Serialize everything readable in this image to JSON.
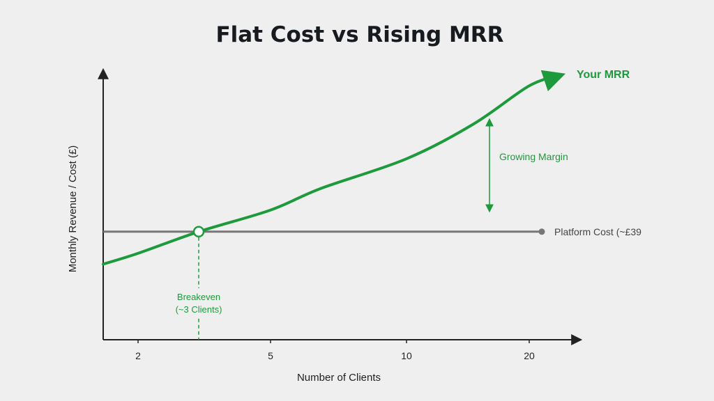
{
  "colors": {
    "background": "#efefef",
    "axis": "#222222",
    "revenue": "#1d9a3b",
    "cost": "#777777",
    "annotation": "#1d9a3b"
  },
  "chart_data": {
    "type": "line",
    "title": "Flat Cost vs Rising MRR",
    "xlabel": "Number of Clients",
    "ylabel": "Monthly Revenue / Cost (£)",
    "x_ticks": [
      2,
      5,
      10,
      20
    ],
    "grid": false,
    "series": [
      {
        "name": "Your MRR",
        "color": "#1d9a3b",
        "shape": "rising curve, ends with arrowhead",
        "points": [
          [
            1.5,
            0.28
          ],
          [
            2,
            0.32
          ],
          [
            3,
            0.4
          ],
          [
            5,
            0.48
          ],
          [
            7,
            0.56
          ],
          [
            10,
            0.67
          ],
          [
            14,
            0.8
          ],
          [
            20,
            0.94
          ],
          [
            21,
            0.98
          ]
        ]
      },
      {
        "name": "Platform Cost (~£39",
        "color": "#777777",
        "shape": "flat line",
        "points": [
          [
            1.5,
            0.4
          ],
          [
            21,
            0.4
          ]
        ]
      }
    ],
    "annotations": {
      "breakeven": {
        "line1": "Breakeven",
        "line2": "(~3 Clients)",
        "x": 3
      },
      "margin": {
        "label": "Growing Margin",
        "x": 16
      }
    }
  }
}
